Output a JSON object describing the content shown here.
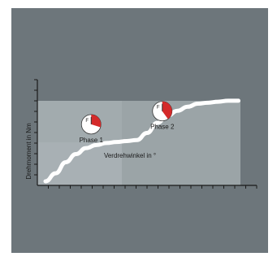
{
  "colors": {
    "panel_background": "#6d767b",
    "plot_light": "#a8b0b4",
    "plot_dark": "#8c9498",
    "curve": "#ffffff",
    "gauge_fill": "#d42a2a",
    "gauge_face": "#ffffff",
    "axis": "#1a1a1a"
  },
  "chart_data": {
    "type": "line",
    "title": "",
    "xlabel": "Verdrehwinkel in °",
    "ylabel": "Drehmoment in Nm",
    "xlim": [
      0,
      20
    ],
    "ylim": [
      0,
      10
    ],
    "x_tick_count": 20,
    "y_tick_count": 10,
    "grid": false,
    "legend": "none",
    "series": [
      {
        "x": [
          0,
          1,
          2,
          3,
          4,
          5,
          6,
          7,
          8,
          9,
          10,
          11,
          12,
          13,
          14,
          15,
          16,
          17,
          18,
          19
        ],
        "values": [
          0.4,
          1.2,
          2.3,
          3.1,
          3.7,
          4.0,
          4.2,
          4.3,
          4.4,
          4.5,
          5.2,
          6.2,
          6.9,
          7.4,
          7.8,
          8.1,
          8.2,
          8.3,
          8.4,
          8.4
        ]
      }
    ],
    "annotations": [
      {
        "label": "Phase 1",
        "x": 4.5,
        "y": 5.9,
        "gauge": "phase-1",
        "fill_fraction": 0.3
      },
      {
        "label": "Phase 2",
        "x": 11.5,
        "y": 7.2,
        "gauge": "phase-2",
        "fill_fraction": 0.4
      }
    ],
    "gauge_tick": "F"
  }
}
